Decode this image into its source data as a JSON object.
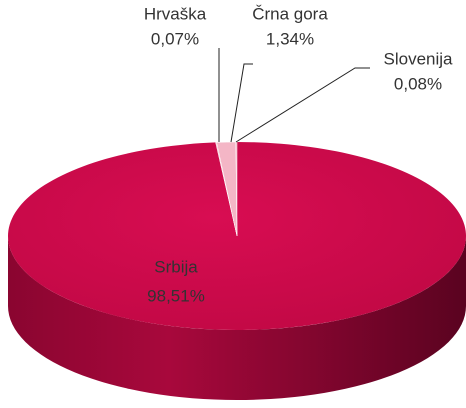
{
  "chart_data": {
    "type": "pie",
    "categories": [
      "Srbija",
      "Hrvaška",
      "Črna gora",
      "Slovenija"
    ],
    "values": [
      98.51,
      0.07,
      1.34,
      0.08
    ],
    "value_labels": [
      "98,51%",
      "0,07%",
      "1,34%",
      "0,08%"
    ],
    "colors": [
      "#cc0a4a",
      "#f2a7b9",
      "#f4b6c6",
      "#f2a7b9"
    ]
  }
}
